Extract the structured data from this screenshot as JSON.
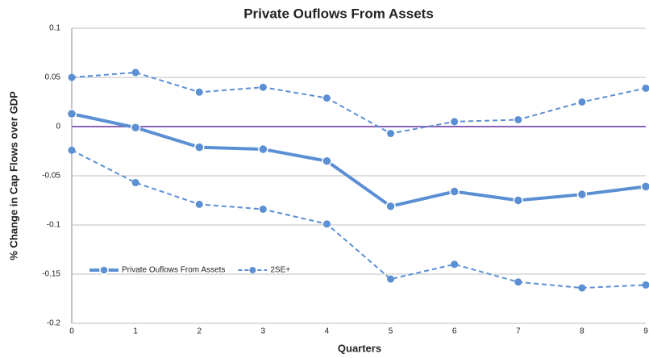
{
  "chart_data": {
    "type": "line",
    "title": "Private Ouflows From Assets",
    "x_label": "Quarters",
    "y_label": "% Change in Cap Flows over  GDP",
    "x": [
      0,
      1,
      2,
      3,
      4,
      5,
      6,
      7,
      8,
      9
    ],
    "series": [
      {
        "name": "Private Ouflows From Assets",
        "color": "#5b8fd3",
        "line_style": "solid",
        "values": [
          0.013,
          -0.001,
          -0.021,
          -0.023,
          -0.035,
          -0.081,
          -0.066,
          -0.075,
          -0.069,
          -0.061
        ]
      },
      {
        "name": "2SE+",
        "color": "#5b8fd3",
        "line_style": "dashed",
        "values": [
          0.05,
          0.055,
          0.035,
          0.04,
          0.029,
          -0.007,
          0.005,
          0.007,
          0.025,
          0.039
        ]
      },
      {
        "color": "#5b8fd3",
        "line_style": "dashed",
        "values": [
          -0.024,
          -0.057,
          -0.079,
          -0.084,
          -0.099,
          -0.155,
          -0.14,
          -0.158,
          -0.164,
          -0.161
        ]
      }
    ],
    "xlim": [
      0,
      9
    ],
    "xticks": [
      0,
      1,
      2,
      3,
      4,
      5,
      6,
      7,
      8,
      9
    ],
    "ylim": [
      -0.2,
      0.1
    ],
    "yticks": [
      0.1,
      0.05,
      0,
      -0.05,
      -0.1,
      -0.15,
      -0.2
    ],
    "grid": true,
    "legend": "lower left",
    "zero_line": {
      "value": 0,
      "color": "#8a63b8"
    }
  }
}
